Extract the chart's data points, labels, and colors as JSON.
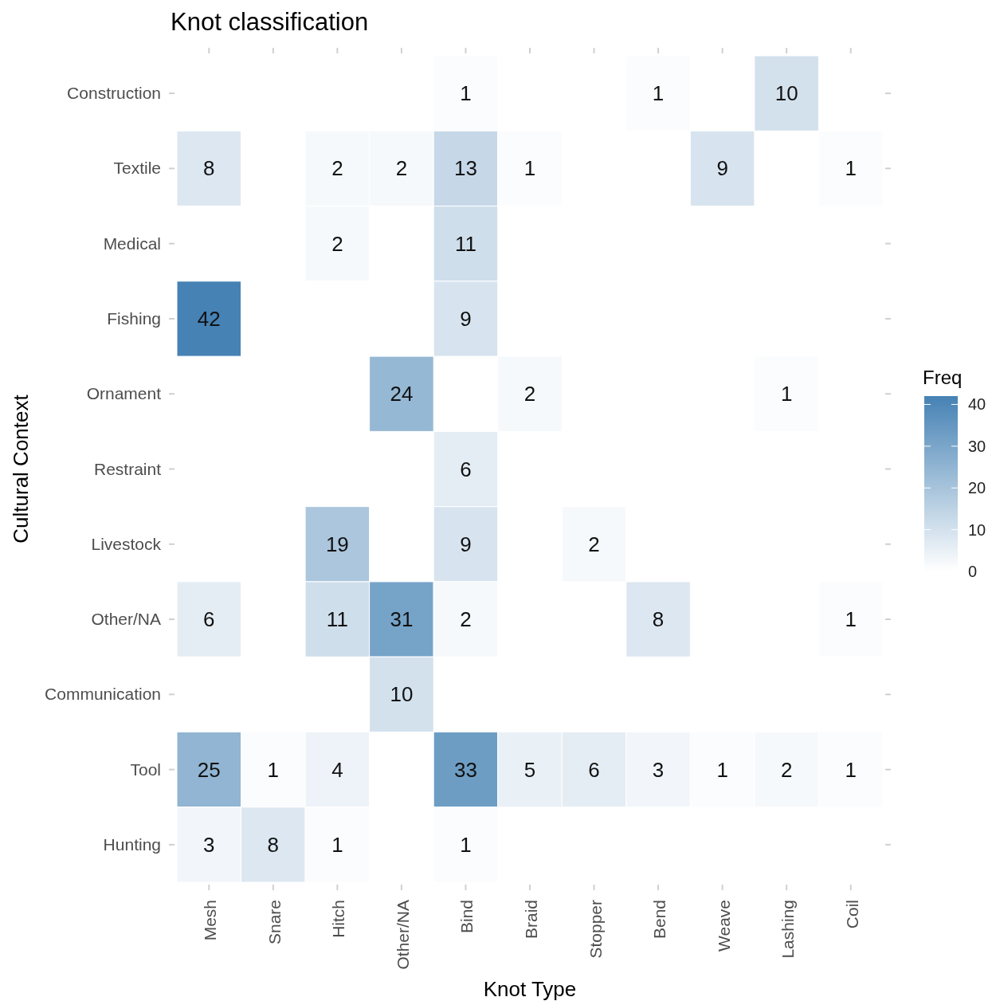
{
  "chart_data": {
    "type": "heatmap",
    "title": "Knot classification",
    "xlabel": "Knot Type",
    "ylabel": "Cultural Context",
    "legend_title": "Freq",
    "categories": [
      "Mesh",
      "Snare",
      "Hitch",
      "Other/NA",
      "Bind",
      "Braid",
      "Stopper",
      "Bend",
      "Weave",
      "Lashing",
      "Coil"
    ],
    "y_categories": [
      "Construction",
      "Textile",
      "Medical",
      "Fishing",
      "Ornament",
      "Restraint",
      "Livestock",
      "Other/NA",
      "Communication",
      "Tool",
      "Hunting"
    ],
    "cells": [
      [
        null,
        null,
        null,
        null,
        1,
        null,
        null,
        1,
        null,
        10,
        null
      ],
      [
        8,
        null,
        2,
        2,
        13,
        1,
        null,
        null,
        9,
        null,
        1
      ],
      [
        null,
        null,
        2,
        null,
        11,
        null,
        null,
        null,
        null,
        null,
        null
      ],
      [
        42,
        null,
        null,
        null,
        9,
        null,
        null,
        null,
        null,
        null,
        null
      ],
      [
        null,
        null,
        null,
        24,
        null,
        2,
        null,
        null,
        null,
        1,
        null
      ],
      [
        null,
        null,
        null,
        null,
        6,
        null,
        null,
        null,
        null,
        null,
        null
      ],
      [
        null,
        null,
        19,
        null,
        9,
        null,
        2,
        null,
        null,
        null,
        null
      ],
      [
        6,
        null,
        11,
        31,
        2,
        null,
        null,
        8,
        null,
        null,
        1
      ],
      [
        null,
        null,
        null,
        10,
        null,
        null,
        null,
        null,
        null,
        null,
        null
      ],
      [
        25,
        1,
        4,
        null,
        33,
        5,
        6,
        3,
        1,
        2,
        1
      ],
      [
        3,
        8,
        1,
        null,
        1,
        null,
        null,
        null,
        null,
        null,
        null
      ]
    ],
    "clim": [
      0,
      42
    ],
    "cticks": [
      0,
      10,
      20,
      30,
      40
    ],
    "colors": [
      "#ffffff",
      "#4682b4"
    ],
    "data_labels": true
  }
}
